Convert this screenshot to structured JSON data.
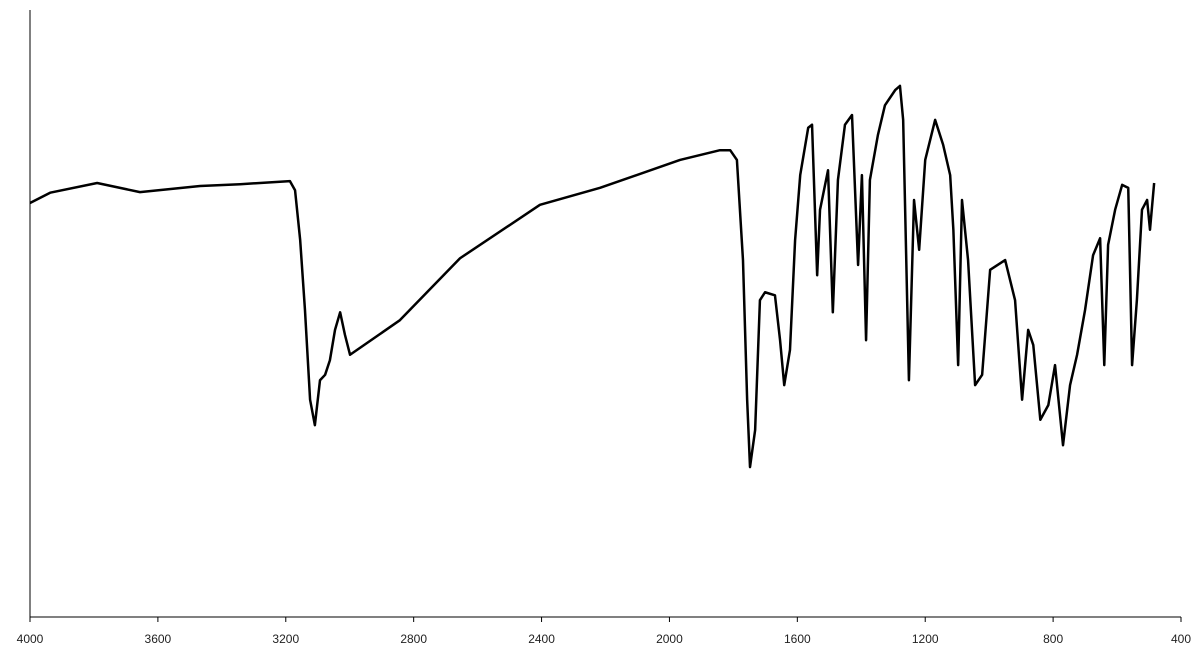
{
  "chart_data": {
    "type": "line",
    "x": [
      4000,
      3937,
      3790,
      3656,
      3468,
      3343,
      3187,
      3171,
      3155,
      3140,
      3124,
      3109,
      3093,
      3077,
      3062,
      3046,
      3030,
      3015,
      2999,
      2843,
      2655,
      2405,
      2217,
      1967,
      1842,
      1810,
      1789,
      1770,
      1757,
      1748,
      1732,
      1717,
      1701,
      1670,
      1654,
      1641,
      1623,
      1607,
      1591,
      1566,
      1554,
      1538,
      1529,
      1504,
      1489,
      1473,
      1451,
      1429,
      1410,
      1398,
      1385,
      1373,
      1348,
      1326,
      1294,
      1279,
      1269,
      1251,
      1235,
      1219,
      1200,
      1169,
      1144,
      1122,
      1112,
      1097,
      1085,
      1066,
      1044,
      1022,
      997,
      950,
      919,
      897,
      878,
      862,
      840,
      815,
      794,
      769,
      747,
      725,
      700,
      675,
      653,
      640,
      628,
      606,
      584,
      565,
      553,
      538,
      522,
      506,
      497,
      484
    ],
    "series": [
      {
        "color": "#000000",
        "values": [
          68.2,
          69.9,
          71.5,
          70.0,
          71.0,
          71.3,
          71.8,
          70.3,
          62.1,
          50.6,
          35.8,
          31.6,
          39.0,
          39.9,
          42.3,
          47.3,
          50.2,
          46.5,
          43.2,
          48.9,
          59.1,
          67.9,
          70.7,
          75.3,
          76.9,
          76.9,
          75.3,
          58.8,
          35.8,
          24.7,
          30.8,
          52.2,
          53.5,
          53.0,
          45.6,
          38.2,
          44.0,
          62.1,
          72.8,
          80.6,
          81.1,
          56.3,
          67.1,
          73.6,
          50.2,
          72.0,
          81.1,
          82.7,
          58.0,
          72.8,
          45.6,
          72.0,
          79.4,
          84.3,
          86.8,
          87.5,
          81.9,
          39.0,
          68.7,
          60.5,
          75.3,
          81.9,
          77.8,
          72.8,
          63.8,
          41.5,
          68.7,
          58.8,
          38.2,
          39.9,
          57.2,
          58.8,
          52.2,
          35.8,
          47.3,
          44.8,
          32.5,
          34.9,
          41.5,
          28.3,
          38.2,
          43.2,
          50.6,
          59.6,
          62.4,
          41.5,
          61.3,
          67.1,
          71.2,
          70.7,
          41.5,
          52.2,
          67.1,
          68.7,
          63.8,
          71.5
        ]
      }
    ],
    "xlim": [
      4000,
      400
    ],
    "xticks": [
      4000,
      3600,
      3200,
      2800,
      2400,
      2000,
      1600,
      1200,
      800,
      400
    ],
    "ylim": [
      0,
      100
    ]
  }
}
